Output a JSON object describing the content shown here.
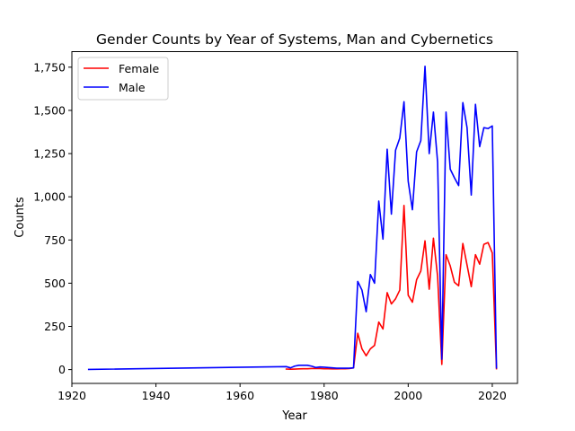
{
  "chart_data": {
    "type": "line",
    "title": "Gender Counts by Year of Systems, Man and Cybernetics",
    "xlabel": "Year",
    "ylabel": "Counts",
    "xlim": [
      1920,
      2026
    ],
    "ylim": [
      -80,
      1840
    ],
    "xticks": [
      1920,
      1940,
      1960,
      1980,
      2000,
      2020
    ],
    "yticks": [
      0,
      250,
      500,
      750,
      1000,
      1250,
      1500,
      1750
    ],
    "grid": false,
    "legend_position": "top-left",
    "series": [
      {
        "name": "Female",
        "color": "#ff0000",
        "x": [
          1971,
          1972,
          1973,
          1974,
          1975,
          1976,
          1977,
          1978,
          1979,
          1980,
          1981,
          1982,
          1983,
          1984,
          1985,
          1986,
          1987,
          1988,
          1989,
          1990,
          1991,
          1992,
          1993,
          1994,
          1995,
          1996,
          1997,
          1998,
          1999,
          2000,
          2001,
          2002,
          2003,
          2004,
          2005,
          2006,
          2007,
          2008,
          2009,
          2010,
          2011,
          2012,
          2013,
          2014,
          2015,
          2016,
          2017,
          2018,
          2019,
          2020,
          2021
        ],
        "y": [
          3,
          2,
          3,
          4,
          5,
          5,
          6,
          6,
          6,
          5,
          5,
          4,
          4,
          5,
          5,
          6,
          10,
          210,
          120,
          80,
          120,
          140,
          275,
          235,
          445,
          380,
          410,
          460,
          950,
          430,
          390,
          520,
          570,
          745,
          465,
          760,
          540,
          30,
          665,
          600,
          505,
          485,
          730,
          605,
          480,
          665,
          610,
          725,
          735,
          675,
          5
        ]
      },
      {
        "name": "Male",
        "color": "#0000ff",
        "x": [
          1924,
          1971,
          1972,
          1973,
          1974,
          1975,
          1976,
          1977,
          1978,
          1979,
          1980,
          1981,
          1982,
          1983,
          1984,
          1985,
          1986,
          1987,
          1988,
          1989,
          1990,
          1991,
          1992,
          1993,
          1994,
          1995,
          1996,
          1997,
          1998,
          1999,
          2000,
          2001,
          2002,
          2003,
          2004,
          2005,
          2006,
          2007,
          2008,
          2009,
          2010,
          2011,
          2012,
          2013,
          2014,
          2015,
          2016,
          2017,
          2018,
          2019,
          2020,
          2021
        ],
        "y": [
          1,
          17,
          10,
          20,
          25,
          25,
          25,
          20,
          12,
          15,
          14,
          12,
          10,
          8,
          8,
          8,
          8,
          10,
          510,
          460,
          335,
          550,
          500,
          975,
          755,
          1275,
          900,
          1270,
          1340,
          1550,
          1090,
          925,
          1260,
          1325,
          1755,
          1250,
          1490,
          1200,
          60,
          1490,
          1160,
          1110,
          1065,
          1545,
          1400,
          1010,
          1535,
          1290,
          1400,
          1395,
          1410,
          10
        ]
      }
    ]
  }
}
